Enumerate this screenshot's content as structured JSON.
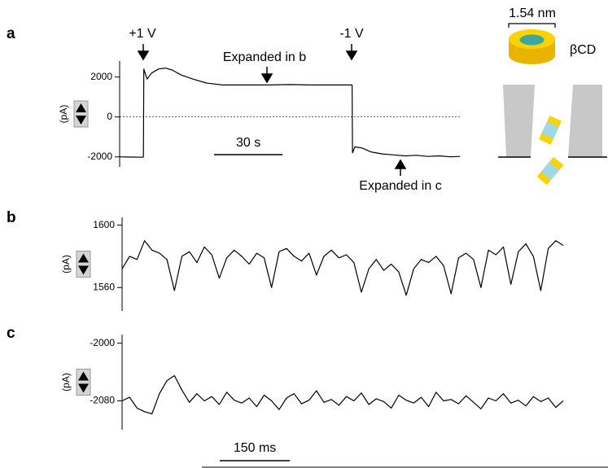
{
  "chart_data": [
    {
      "type": "line",
      "panel": "a",
      "ylabel": "(pA)",
      "x": [
        0,
        5,
        10,
        10.4,
        10.6,
        12,
        14,
        17,
        20,
        23,
        27,
        32,
        38,
        45,
        55,
        65,
        75,
        85,
        95,
        101.8,
        102,
        103,
        106,
        110,
        115,
        120,
        125,
        130,
        135,
        140,
        145,
        149
      ],
      "series": [
        {
          "color": "#000000",
          "values": [
            -2000,
            -2010,
            -2020,
            -2000,
            2400,
            1900,
            2200,
            2400,
            2450,
            2350,
            2100,
            1900,
            1700,
            1600,
            1600,
            1600,
            1620,
            1600,
            1600,
            1600,
            -1800,
            -1500,
            -1550,
            -1750,
            -1850,
            -1900,
            -1950,
            -1920,
            -1980,
            -1950,
            -2000,
            -1980
          ]
        }
      ],
      "xlim": [
        0,
        149
      ],
      "ylim": [
        -2500,
        2800
      ],
      "yticks": [
        2000,
        0,
        -2000
      ],
      "reference_line": 0,
      "scale_bar": {
        "value": 30,
        "label": "30 s"
      },
      "annotations": [
        "+1 V",
        "-1 V",
        "Expanded in b",
        "Expanded in c"
      ]
    },
    {
      "type": "line",
      "panel": "b",
      "ylabel": "(pA)",
      "x": [
        0,
        16,
        32,
        48,
        64,
        80,
        96,
        112,
        128,
        144,
        160,
        176,
        192,
        208,
        224,
        240,
        256,
        272,
        288,
        304,
        320,
        336,
        352,
        368,
        384,
        400,
        416,
        432,
        448,
        464,
        480,
        496,
        512,
        528,
        544,
        560,
        576,
        592,
        608,
        624,
        640,
        656,
        672,
        688,
        704,
        720,
        736,
        752,
        768,
        784,
        800,
        816,
        832,
        848,
        864,
        880,
        896,
        912,
        928,
        944
      ],
      "series": [
        {
          "color": "#000000",
          "values": [
            1572,
            1580,
            1578,
            1590,
            1584,
            1582,
            1578,
            1558,
            1580,
            1583,
            1576,
            1586,
            1581,
            1566,
            1579,
            1584,
            1580,
            1575,
            1582,
            1579,
            1560,
            1583,
            1585,
            1580,
            1577,
            1582,
            1568,
            1580,
            1584,
            1579,
            1581,
            1576,
            1557,
            1572,
            1578,
            1571,
            1575,
            1570,
            1555,
            1572,
            1578,
            1576,
            1580,
            1574,
            1556,
            1579,
            1582,
            1578,
            1560,
            1584,
            1581,
            1586,
            1562,
            1583,
            1588,
            1580,
            1558,
            1585,
            1590,
            1587
          ]
        }
      ],
      "xlim": [
        0,
        944
      ],
      "ylim": [
        1545,
        1605
      ],
      "yticks": [
        1600,
        1560
      ]
    },
    {
      "type": "line",
      "panel": "c",
      "ylabel": "(pA)",
      "x": [
        0,
        16,
        32,
        48,
        64,
        80,
        96,
        112,
        128,
        144,
        160,
        176,
        192,
        208,
        224,
        240,
        256,
        272,
        288,
        304,
        320,
        336,
        352,
        368,
        384,
        400,
        416,
        432,
        448,
        464,
        480,
        496,
        512,
        528,
        544,
        560,
        576,
        592,
        608,
        624,
        640,
        656,
        672,
        688,
        704,
        720,
        736,
        752,
        768,
        784,
        800,
        816,
        832,
        848,
        864,
        880,
        896,
        912,
        928,
        944
      ],
      "series": [
        {
          "color": "#000000",
          "values": [
            -2080,
            -2075,
            -2090,
            -2095,
            -2098,
            -2070,
            -2052,
            -2045,
            -2065,
            -2082,
            -2070,
            -2080,
            -2074,
            -2085,
            -2068,
            -2079,
            -2083,
            -2076,
            -2088,
            -2072,
            -2080,
            -2092,
            -2076,
            -2070,
            -2084,
            -2079,
            -2066,
            -2082,
            -2078,
            -2086,
            -2074,
            -2080,
            -2069,
            -2085,
            -2077,
            -2081,
            -2090,
            -2072,
            -2079,
            -2083,
            -2075,
            -2088,
            -2068,
            -2080,
            -2078,
            -2084,
            -2073,
            -2082,
            -2091,
            -2076,
            -2080,
            -2070,
            -2083,
            -2079,
            -2087,
            -2074,
            -2081,
            -2076,
            -2089,
            -2080
          ]
        }
      ],
      "xlim": [
        0,
        944
      ],
      "ylim": [
        -2120,
        -1988
      ],
      "yticks": [
        -2000,
        -2080
      ],
      "scale_bar": {
        "value": 150,
        "label": "150 ms"
      }
    }
  ],
  "diagram": {
    "width_label": "1.54 nm",
    "label": "βCD"
  }
}
